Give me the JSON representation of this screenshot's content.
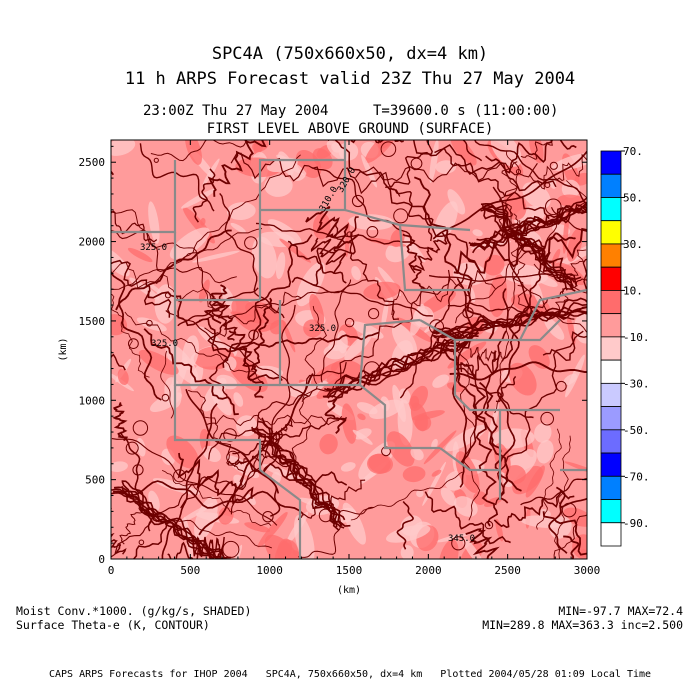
{
  "header": {
    "title": "SPC4A (750x660x50, dx=4 km)",
    "subtitle": "11 h ARPS Forecast valid 23Z Thu 27 May 2004",
    "valid_time": "23:00Z Thu 27 May 2004",
    "model_time": "T=39600.0 s (11:00:00)",
    "level": "FIRST LEVEL ABOVE GROUND (SURFACE)"
  },
  "footer": {
    "shaded_label": "Moist Conv.*1000. (g/kg/s, SHADED)",
    "contour_label": "Surface Theta-e (K, CONTOUR)",
    "shaded_stats": "MIN=-97.7 MAX=72.4",
    "contour_stats": "MIN=289.8 MAX=363.3 inc=2.500",
    "credit": "CAPS ARPS Forecasts for IHOP 2004   SPC4A, 750x660x50, dx=4 km   Plotted 2004/05/28 01:09 Local Time"
  },
  "chart_data": {
    "type": "heatmap",
    "xlabel": "(km)",
    "ylabel": "(km)",
    "xlim": [
      0,
      3000
    ],
    "ylim": [
      0,
      2640
    ],
    "x_ticks": [
      "0",
      "500",
      "1000",
      "1500",
      "2000",
      "2500",
      "3000"
    ],
    "y_ticks": [
      "0",
      "500",
      "1000",
      "1500",
      "2000",
      "2500"
    ],
    "colorbar": {
      "colors": [
        "#ffffff",
        "#00ffff",
        "#0080ff",
        "#0000ff",
        "#6c6cff",
        "#9b9bff",
        "#cacaff",
        "#ffffff",
        "#ffcaca",
        "#ff9b9b",
        "#ff6c6c",
        "#ff0000",
        "#ff8000",
        "#ffff00",
        "#00ffff",
        "#0080ff",
        "#0000ff"
      ],
      "labels": [
        "70.",
        "50.",
        "30.",
        "10.",
        "-10.",
        "-30.",
        "-50.",
        "-70.",
        "-90."
      ]
    },
    "contour_labels": [
      "325.0",
      "320.0",
      "325.0",
      "325.0",
      "345.0",
      "310.0"
    ],
    "colors": {
      "contour": "#6e0000",
      "field_base": "#ff9b9b",
      "field_light": "#ffcaca",
      "field_dark": "#ff6c6c",
      "border": "#8a8a8a"
    }
  }
}
